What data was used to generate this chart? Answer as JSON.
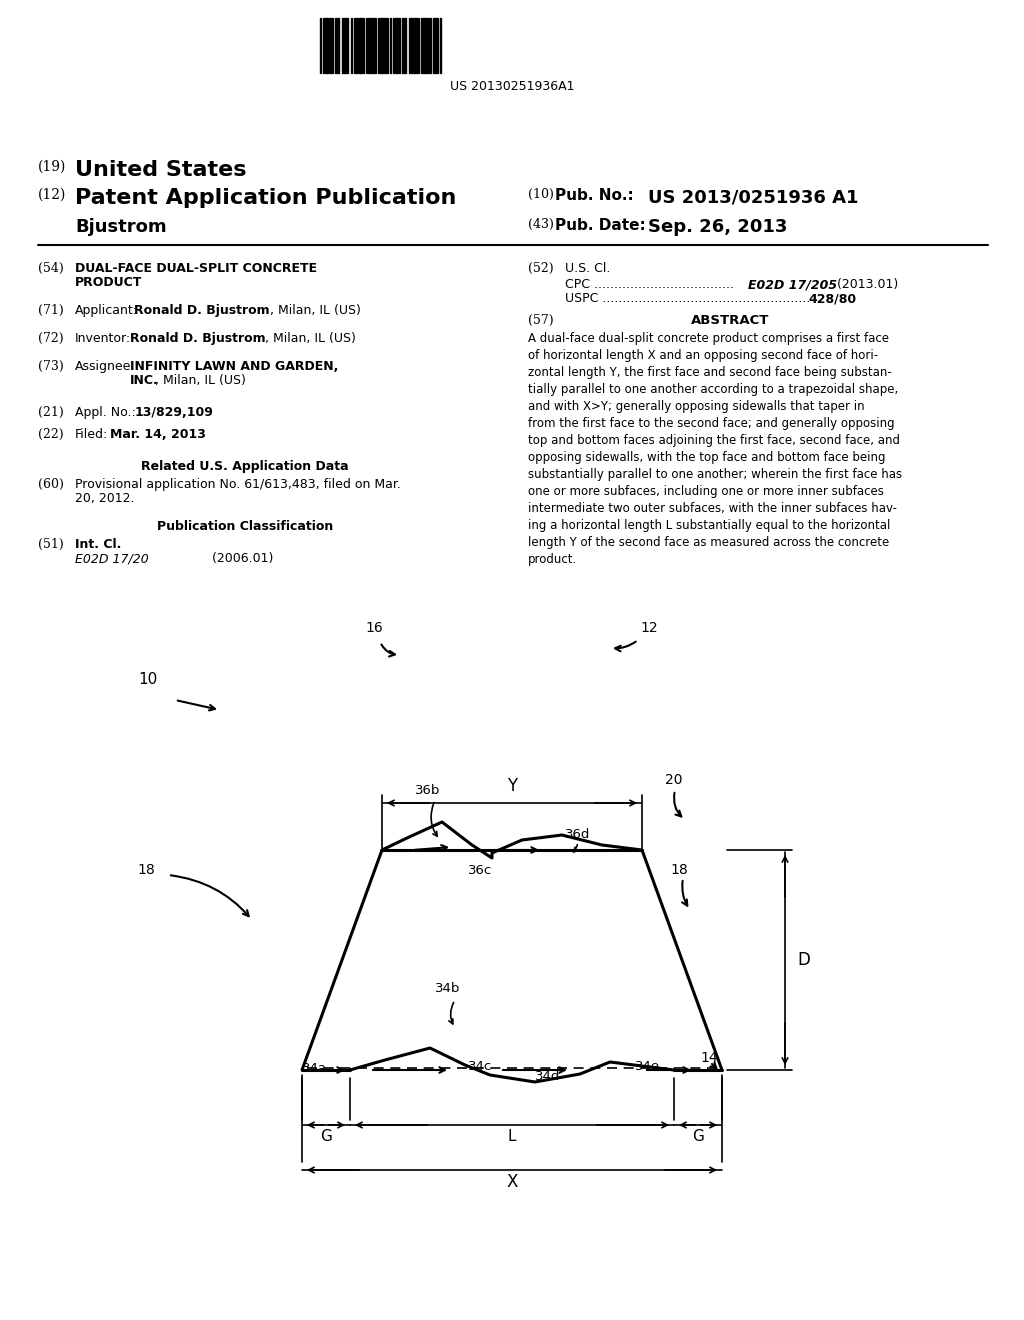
{
  "bg_color": "#ffffff",
  "barcode_text": "US 20130251936A1",
  "title_19": "(19) United States",
  "title_12": "(12) Patent Application Publication",
  "pub_no_label": "(10) Pub. No.:",
  "pub_no": "US 2013/0251936 A1",
  "inventor_name": "Bjustrom",
  "pub_date_label": "(43) Pub. Date:",
  "pub_date": "Sep. 26, 2013",
  "field54_label": "(54)",
  "field54": "DUAL-FACE DUAL-SPLIT CONCRETE\nPRODUCT",
  "field52_label": "(52)",
  "field52_title": "U.S. Cl.",
  "field52_cpc": "CPC ....................................  E02D 17/205 (2013.01)",
  "field52_uspc": "USPC ............................................................ 428/80",
  "field71_label": "(71)",
  "field71": "Applicant:  Ronald D. Bjustrom, Milan, IL (US)",
  "field72_label": "(72)",
  "field72": "Inventor:    Ronald D. Bjustrom, Milan, IL (US)",
  "field57_label": "(57)",
  "field57_title": "ABSTRACT",
  "abstract": "A dual-face dual-split concrete product comprises a first face of horizontal length X and an opposing second face of horizontal length Y, the first face and second face being substantially parallel to one another according to a trapezoidal shape, and with X>Y; generally opposing sidewalls that taper in from the first face to the second face; and generally opposing top and bottom faces adjoining the first face, second face, and opposing sidewalls, with the top face and bottom face being substantially parallel to one another; wherein the first face has one or more subfaces, including one or more inner subfaces intermediate two outer subfaces, with the inner subfaces having a horizontal length L substantially equal to the horizontal length Y of the second face as measured across the concrete product.",
  "field73_label": "(73)",
  "field73": "Assignee:  INFINITY LAWN AND GARDEN,\n                      INC., Milan, IL (US)",
  "field21_label": "(21)",
  "field21": "Appl. No.:  13/829,109",
  "field22_label": "(22)",
  "field22": "Filed:          Mar. 14, 2013",
  "related_title": "Related U.S. Application Data",
  "field60_label": "(60)",
  "field60": "Provisional application No. 61/613,483, filed on Mar.\n20, 2012.",
  "pub_class_title": "Publication Classification",
  "field51_label": "(51)",
  "field51_title": "Int. Cl.",
  "field51_class": "E02D 17/20                (2006.01)"
}
